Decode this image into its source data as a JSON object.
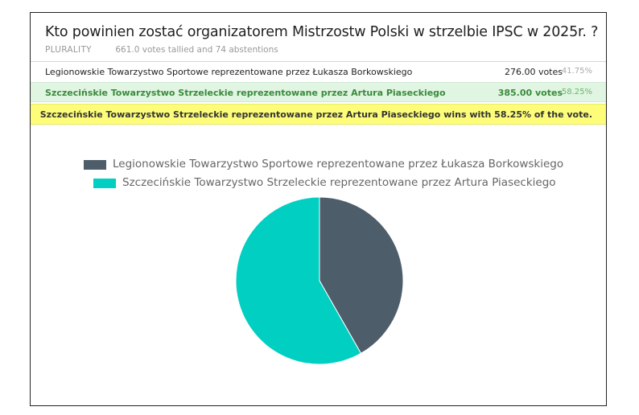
{
  "poll": {
    "title": "Kto powinien zostać organizatorem Mistrzostw Polski w strzelbie IPSC w 2025r. ?",
    "method": "PLURALITY",
    "tally_text": "661.0 votes tallied and 74 abstentions"
  },
  "results": [
    {
      "name": "Legionowskie Towarzystwo Sportowe reprezentowane przez Łukasza Borkowskiego",
      "votes": "276.00 votes",
      "percent": "41.75%"
    },
    {
      "name": "Szczecińskie Towarzystwo Strzeleckie reprezentowane przez Artura Piaseckiego",
      "votes": "385.00 votes",
      "percent": "58.25%"
    }
  ],
  "winner_text": "Szczecińskie Towarzystwo Strzeleckie reprezentowane przez Artura Piaseckiego wins with 58.25% of the vote.",
  "colors": {
    "series1": "#4e5d6a",
    "series2": "#00cfc2",
    "winner_highlight": "#fdfd7a",
    "winner_row": "#e1f5e3"
  },
  "chart_data": {
    "type": "pie",
    "categories": [
      "Legionowskie Towarzystwo Sportowe reprezentowane przez Łukasza Borkowskiego",
      "Szczecińskie Towarzystwo Strzeleckie reprezentowane przez Artura Piaseckiego"
    ],
    "values": [
      276,
      385
    ],
    "colors": [
      "#4e5d6a",
      "#00cfc2"
    ],
    "legend": "top"
  }
}
